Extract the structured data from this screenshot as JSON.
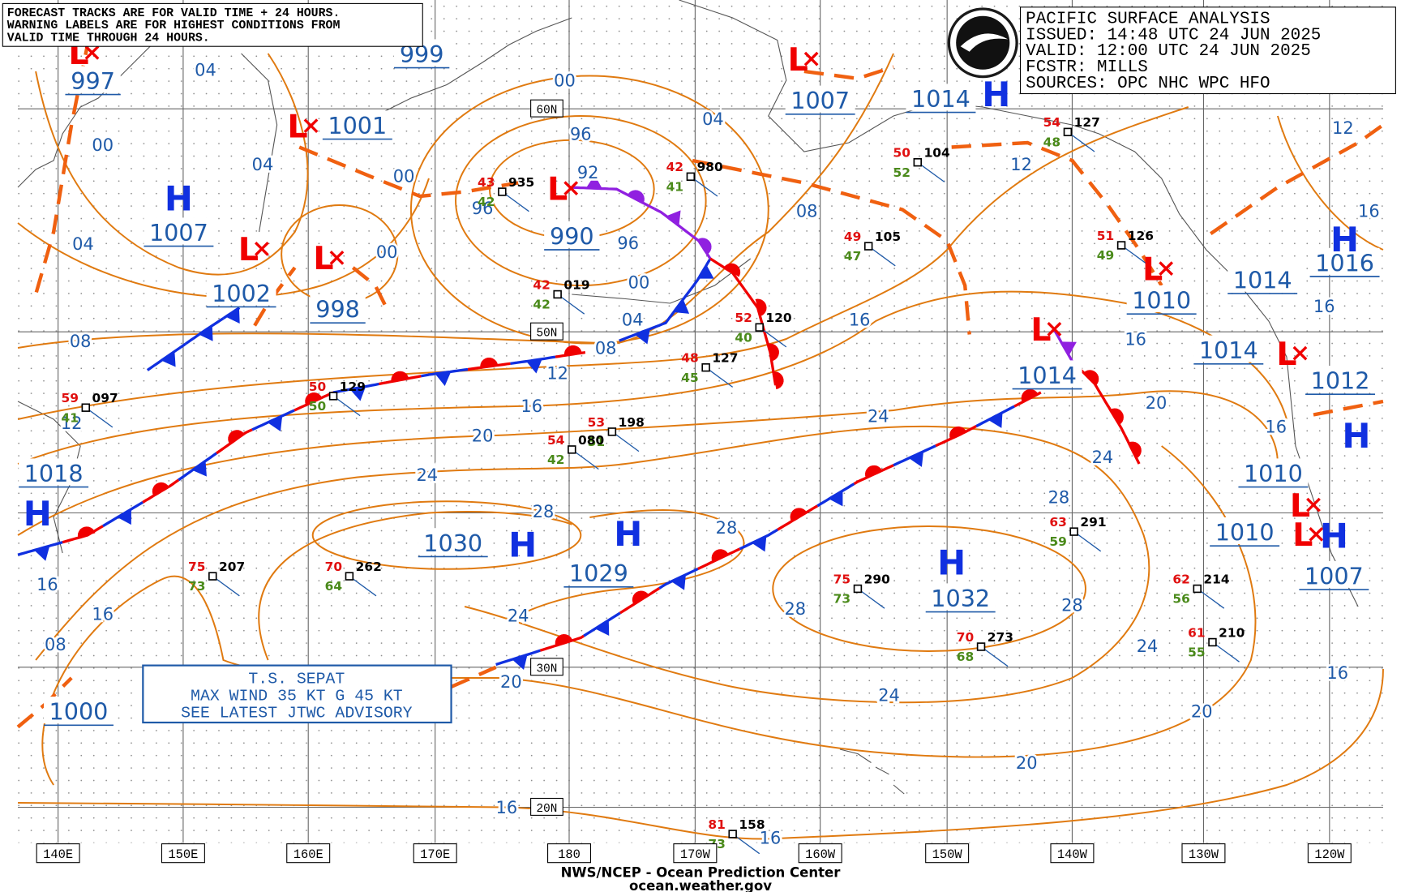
{
  "header": {
    "lines": [
      "PACIFIC SURFACE ANALYSIS",
      "ISSUED: 14:48 UTC 24 JUN 2025",
      "VALID:  12:00 UTC 24 JUN 2025",
      "FCSTR:  MILLS",
      "SOURCES: OPC NHC WPC HFO"
    ]
  },
  "notice": {
    "lines": [
      "FORECAST TRACKS ARE FOR VALID TIME + 24 HOURS.",
      "WARNING LABELS ARE FOR HIGHEST CONDITIONS FROM",
      "VALID TIME THROUGH 24 HOURS."
    ]
  },
  "storm_box": {
    "lines": [
      "T.S. SEPAT",
      "MAX WIND 35 KT G 45 KT",
      "SEE LATEST JTWC ADVISORY"
    ]
  },
  "footer": {
    "lines": [
      "NWS/NCEP - Ocean Prediction Center",
      "ocean.weather.gov"
    ]
  },
  "longitude_labels": [
    "140E",
    "150E",
    "160E",
    "170E",
    "180",
    "170W",
    "160W",
    "150W",
    "140W",
    "130W",
    "120W"
  ],
  "latitude_labels": [
    "60N",
    "50N",
    "30N",
    "20N"
  ],
  "pressure_centers": [
    {
      "symbol": "L",
      "pressure": "997"
    },
    {
      "pressure": "999"
    },
    {
      "symbol": "L",
      "pressure": "1001"
    },
    {
      "symbol": "H",
      "pressure": "1007"
    },
    {
      "symbol": "L",
      "pressure": "1002"
    },
    {
      "symbol": "L",
      "pressure": "998"
    },
    {
      "symbol": "L",
      "pressure": "990"
    },
    {
      "symbol": "L",
      "pressure": "1007"
    },
    {
      "symbol": "H",
      "pressure": "1014"
    },
    {
      "symbol": "L",
      "pressure": "1014"
    },
    {
      "symbol": "L",
      "pressure": "1010"
    },
    {
      "symbol": "H",
      "pressure": "1016"
    },
    {
      "pressure": "1014"
    },
    {
      "symbol": "L",
      "pressure": "1014"
    },
    {
      "symbol": "H",
      "pressure": "1012"
    },
    {
      "symbol": "H",
      "pressure": "1018"
    },
    {
      "symbol": "L",
      "pressure": "1010"
    },
    {
      "symbol": "L",
      "pressure": "1010"
    },
    {
      "symbol": "H",
      "pressure": "1007"
    },
    {
      "symbol": "H",
      "pressure": "1030"
    },
    {
      "symbol": "H",
      "pressure": "1029"
    },
    {
      "symbol": "H",
      "pressure": "1032"
    },
    {
      "pressure": "1000"
    }
  ],
  "isobar_labels": [
    "04",
    "00",
    "04",
    "00",
    "04",
    "00",
    "08",
    "12",
    "16",
    "16",
    "08",
    "00",
    "04",
    "96",
    "92",
    "96",
    "96",
    "00",
    "04",
    "08",
    "12",
    "16",
    "20",
    "24",
    "28",
    "28",
    "24",
    "20",
    "16",
    "16",
    "08",
    "16",
    "24",
    "12",
    "12",
    "16",
    "20",
    "24",
    "28",
    "28",
    "28",
    "24",
    "24",
    "20",
    "20",
    "16",
    "16",
    "16",
    "16"
  ],
  "stations": [
    {
      "temp": "43",
      "pressure": "935",
      "dewpoint": "42"
    },
    {
      "temp": "42",
      "pressure": "019",
      "dewpoint": "42"
    },
    {
      "temp": "42",
      "pressure": "980",
      "dewpoint": "41"
    },
    {
      "temp": "52",
      "pressure": "120",
      "dewpoint": "40"
    },
    {
      "temp": "48",
      "pressure": "127",
      "dewpoint": "45"
    },
    {
      "temp": "49",
      "pressure": "105",
      "dewpoint": "47"
    },
    {
      "temp": "50",
      "pressure": "104",
      "dewpoint": "52"
    },
    {
      "temp": "53",
      "pressure": "198",
      "dewpoint": "51"
    },
    {
      "temp": "54",
      "pressure": "080",
      "dewpoint": "42"
    },
    {
      "temp": "50",
      "pressure": "129",
      "dewpoint": "50"
    },
    {
      "temp": "59",
      "pressure": "097",
      "dewpoint": "41"
    },
    {
      "temp": "75",
      "pressure": "207",
      "dewpoint": "73"
    },
    {
      "temp": "70",
      "pressure": "262",
      "dewpoint": "64"
    },
    {
      "temp": "75",
      "pressure": "290",
      "dewpoint": "73"
    },
    {
      "temp": "70",
      "pressure": "273",
      "dewpoint": "68"
    },
    {
      "temp": "63",
      "pressure": "291",
      "dewpoint": "59"
    },
    {
      "temp": "62",
      "pressure": "214",
      "dewpoint": "56"
    },
    {
      "temp": "61",
      "pressure": "210",
      "dewpoint": "55"
    },
    {
      "temp": "81",
      "pressure": "158",
      "dewpoint": "73"
    },
    {
      "temp": "54",
      "pressure": "127",
      "dewpoint": "48"
    },
    {
      "temp": "51",
      "pressure": "126",
      "dewpoint": "49"
    }
  ]
}
